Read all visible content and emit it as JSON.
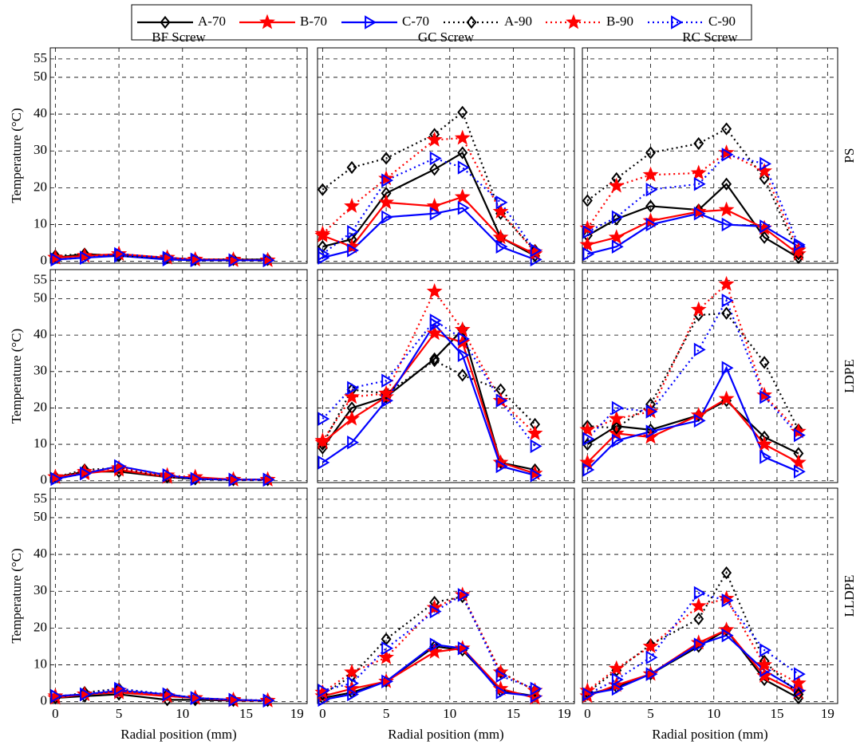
{
  "legend": {
    "position": "top",
    "entries": [
      {
        "name": "A-70",
        "color": "#000000",
        "dash": "solid",
        "marker": "diamond"
      },
      {
        "name": "B-70",
        "color": "#ff0000",
        "dash": "solid",
        "marker": "star"
      },
      {
        "name": "C-70",
        "color": "#0000ff",
        "dash": "solid",
        "marker": "triangle-right"
      },
      {
        "name": "A-90",
        "color": "#000000",
        "dash": "dotted",
        "marker": "diamond"
      },
      {
        "name": "B-90",
        "color": "#ff0000",
        "dash": "dotted",
        "marker": "star"
      },
      {
        "name": "C-90",
        "color": "#0000ff",
        "dash": "dotted",
        "marker": "triangle-right"
      }
    ]
  },
  "chart_data": [
    {
      "type": "line",
      "title": "BF Screw",
      "ylabel": "Temperature (°C)",
      "x": [
        0,
        2.3,
        5,
        8.8,
        11,
        14,
        16.7
      ],
      "xlim": [
        -0.4,
        19.8
      ],
      "ylim": [
        -0.5,
        58
      ],
      "xticks": [
        0,
        5,
        10,
        15,
        19
      ],
      "yticks": [
        0,
        10,
        20,
        30,
        40,
        50,
        55
      ],
      "grid": true,
      "series": [
        {
          "values": [
            1,
            2,
            1.5,
            1,
            0.5,
            0.5,
            0.5
          ]
        },
        {
          "values": [
            1,
            1.5,
            2,
            1,
            0.5,
            0.5,
            0.3
          ]
        },
        {
          "values": [
            0.5,
            1,
            1.5,
            0.5,
            0.3,
            0.3,
            0.3
          ]
        },
        {
          "values": [
            1.5,
            2,
            1.5,
            1,
            0.5,
            0.5,
            0.5
          ]
        },
        {
          "values": [
            1,
            1.5,
            2,
            1,
            0.5,
            0.3,
            0.3
          ]
        },
        {
          "values": [
            0.5,
            1,
            2,
            1,
            0.5,
            0.3,
            0.3
          ]
        }
      ]
    },
    {
      "type": "line",
      "title": "GC Screw",
      "x": [
        0,
        2.3,
        5,
        8.8,
        11,
        14,
        16.7
      ],
      "xlim": [
        -0.4,
        19.8
      ],
      "ylim": [
        -0.5,
        58
      ],
      "xticks": [
        0,
        5,
        10,
        15,
        19
      ],
      "yticks": [
        0,
        10,
        20,
        30,
        40,
        50,
        55
      ],
      "grid": true,
      "series": [
        {
          "values": [
            4,
            6,
            18.5,
            25,
            29.5,
            6.5,
            1.5
          ]
        },
        {
          "values": [
            7,
            4,
            16,
            15,
            17.5,
            6.5,
            2
          ]
        },
        {
          "values": [
            1,
            3,
            12,
            13,
            14.5,
            4,
            0.5
          ]
        },
        {
          "values": [
            19.5,
            25.5,
            28,
            34.5,
            40.5,
            13,
            3
          ]
        },
        {
          "values": [
            7.5,
            15,
            22.5,
            33,
            33.5,
            13.5,
            2.5
          ]
        },
        {
          "values": [
            2,
            8,
            22,
            28,
            25.5,
            16,
            3
          ]
        }
      ]
    },
    {
      "type": "line",
      "title": "RC Screw",
      "row_label": "PS",
      "x": [
        0,
        2.3,
        5,
        8.8,
        11,
        14,
        16.7
      ],
      "xlim": [
        -0.4,
        19.8
      ],
      "ylim": [
        -0.5,
        58
      ],
      "xticks": [
        0,
        5,
        10,
        15,
        19
      ],
      "yticks": [
        0,
        10,
        20,
        30,
        40,
        50,
        55
      ],
      "grid": true,
      "series": [
        {
          "values": [
            7,
            11.5,
            15,
            14,
            21,
            6.5,
            1
          ]
        },
        {
          "values": [
            4.5,
            6.5,
            11,
            13.5,
            14,
            9,
            2
          ]
        },
        {
          "values": [
            2,
            4,
            10,
            13,
            10,
            9.5,
            4
          ]
        },
        {
          "values": [
            16.5,
            22.5,
            29.5,
            32,
            36,
            22.5,
            2
          ]
        },
        {
          "values": [
            9,
            20.5,
            23.5,
            24,
            29.5,
            24.5,
            3
          ]
        },
        {
          "values": [
            8,
            12,
            19.5,
            21,
            29,
            26.5,
            4.5
          ]
        }
      ]
    },
    {
      "type": "line",
      "ylabel": "Temperature (°C)",
      "x": [
        0,
        2.3,
        5,
        8.8,
        11,
        14,
        16.7
      ],
      "xlim": [
        -0.4,
        19.8
      ],
      "ylim": [
        -0.5,
        58
      ],
      "xticks": [
        0,
        5,
        10,
        15,
        19
      ],
      "yticks": [
        0,
        10,
        20,
        30,
        40,
        50,
        55
      ],
      "grid": true,
      "series": [
        {
          "values": [
            1,
            2.5,
            2.5,
            1,
            0.5,
            0.3,
            0.3
          ]
        },
        {
          "values": [
            1,
            2,
            3,
            1,
            1,
            0.3,
            0.3
          ]
        },
        {
          "values": [
            0.5,
            2,
            4,
            1.5,
            0.5,
            0.3,
            0.3
          ]
        },
        {
          "values": [
            1,
            3,
            3.5,
            1,
            0.5,
            0.3,
            0.3
          ]
        },
        {
          "values": [
            1,
            2.5,
            3.5,
            1.5,
            1,
            0.3,
            0.3
          ]
        },
        {
          "values": [
            0.5,
            2,
            4,
            1.5,
            0.5,
            0.3,
            0.3
          ]
        }
      ]
    },
    {
      "type": "line",
      "x": [
        0,
        2.3,
        5,
        8.8,
        11,
        14,
        16.7
      ],
      "xlim": [
        -0.4,
        19.8
      ],
      "ylim": [
        -0.5,
        58
      ],
      "xticks": [
        0,
        5,
        10,
        15,
        19
      ],
      "yticks": [
        0,
        10,
        20,
        30,
        40,
        50,
        55
      ],
      "grid": true,
      "series": [
        {
          "values": [
            9,
            20,
            23,
            33.5,
            41.5,
            5,
            3
          ]
        },
        {
          "values": [
            10.5,
            17,
            23,
            40.5,
            38,
            5,
            2
          ]
        },
        {
          "values": [
            5,
            10.5,
            22,
            43,
            34.5,
            4,
            1.5
          ]
        },
        {
          "values": [
            10,
            25,
            24,
            33,
            29,
            25,
            15.5
          ]
        },
        {
          "values": [
            11,
            23,
            24,
            52,
            41.5,
            22,
            13
          ]
        },
        {
          "values": [
            17,
            25.5,
            27.5,
            44,
            39,
            22,
            9.5
          ]
        }
      ]
    },
    {
      "type": "line",
      "row_label": "LDPE",
      "x": [
        0,
        2.3,
        5,
        8.8,
        11,
        14,
        16.7
      ],
      "xlim": [
        -0.4,
        19.8
      ],
      "ylim": [
        -0.5,
        58
      ],
      "xticks": [
        0,
        5,
        10,
        15,
        19
      ],
      "yticks": [
        0,
        10,
        20,
        30,
        40,
        50,
        55
      ],
      "grid": true,
      "series": [
        {
          "values": [
            10,
            15,
            14,
            18,
            22,
            12,
            7.5
          ]
        },
        {
          "values": [
            5,
            13,
            12,
            18,
            22.5,
            10,
            5
          ]
        },
        {
          "values": [
            3,
            11,
            13.5,
            16.5,
            31,
            6.5,
            2.5
          ]
        },
        {
          "values": [
            15,
            14.5,
            21,
            45.5,
            46,
            32.5,
            14
          ]
        },
        {
          "values": [
            14,
            17,
            19,
            47,
            54,
            23.5,
            13.5
          ]
        },
        {
          "values": [
            11.5,
            20,
            19,
            36,
            49.5,
            23,
            12.5
          ]
        }
      ]
    },
    {
      "type": "line",
      "ylabel": "Temperature (°C)",
      "xlabel": "Radial position (mm)",
      "x": [
        0,
        2.3,
        5,
        8.8,
        11,
        14,
        16.7
      ],
      "xlim": [
        -0.4,
        19.8
      ],
      "ylim": [
        -0.5,
        58
      ],
      "xticks": [
        0,
        5,
        10,
        15,
        19
      ],
      "yticks": [
        0,
        10,
        20,
        30,
        40,
        50,
        55
      ],
      "grid": true,
      "series": [
        {
          "values": [
            1,
            1.5,
            2,
            0.5,
            0.5,
            0.3,
            0.3
          ]
        },
        {
          "values": [
            1,
            2,
            2.5,
            1.5,
            1,
            0.3,
            0.3
          ]
        },
        {
          "values": [
            1.5,
            2,
            3,
            2,
            1,
            0.5,
            0.3
          ]
        },
        {
          "values": [
            1,
            2.5,
            3.5,
            2,
            1,
            0.5,
            0.3
          ]
        },
        {
          "values": [
            1.5,
            2,
            3,
            1.5,
            1,
            0.5,
            0.3
          ]
        },
        {
          "values": [
            1.5,
            2,
            3.5,
            2,
            1,
            0.5,
            0.3
          ]
        }
      ]
    },
    {
      "type": "line",
      "xlabel": "Radial position (mm)",
      "x": [
        0,
        2.3,
        5,
        8.8,
        11,
        14,
        16.7
      ],
      "xlim": [
        -0.4,
        19.8
      ],
      "ylim": [
        -0.5,
        58
      ],
      "xticks": [
        0,
        5,
        10,
        15,
        19
      ],
      "yticks": [
        0,
        10,
        20,
        30,
        40,
        50,
        55
      ],
      "grid": true,
      "series": [
        {
          "values": [
            1,
            2.5,
            5.5,
            15,
            14,
            3,
            1.5
          ]
        },
        {
          "values": [
            1.5,
            3.5,
            5.5,
            13.5,
            14.5,
            3.5,
            1
          ]
        },
        {
          "values": [
            0.5,
            2,
            5.5,
            15.5,
            14.5,
            2.5,
            1.5
          ]
        },
        {
          "values": [
            2,
            7,
            17,
            27,
            28.5,
            8,
            3
          ]
        },
        {
          "values": [
            2.5,
            8,
            12,
            25.5,
            29,
            8,
            3
          ]
        },
        {
          "values": [
            3,
            5,
            14.5,
            24.5,
            29,
            7,
            3.5
          ]
        }
      ]
    },
    {
      "type": "line",
      "row_label": "LLDPE",
      "xlabel": "Radial position (mm)",
      "x": [
        0,
        2.3,
        5,
        8.8,
        11,
        14,
        16.7
      ],
      "xlim": [
        -0.4,
        19.8
      ],
      "ylim": [
        -0.5,
        58
      ],
      "xticks": [
        0,
        5,
        10,
        15,
        19
      ],
      "yticks": [
        0,
        10,
        20,
        30,
        40,
        50,
        55
      ],
      "grid": true,
      "series": [
        {
          "values": [
            2,
            4,
            7.5,
            15,
            19.5,
            6,
            1
          ]
        },
        {
          "values": [
            1.5,
            4.5,
            7.5,
            16,
            19.5,
            7,
            2.5
          ]
        },
        {
          "values": [
            2,
            3.5,
            7.5,
            15.5,
            18,
            8.5,
            3
          ]
        },
        {
          "values": [
            2.5,
            8.5,
            15.5,
            22.5,
            35,
            11,
            2
          ]
        },
        {
          "values": [
            3,
            9,
            15,
            26,
            28,
            10,
            5
          ]
        },
        {
          "values": [
            2,
            6,
            12,
            29.5,
            27.5,
            14,
            7.5
          ]
        }
      ]
    }
  ]
}
